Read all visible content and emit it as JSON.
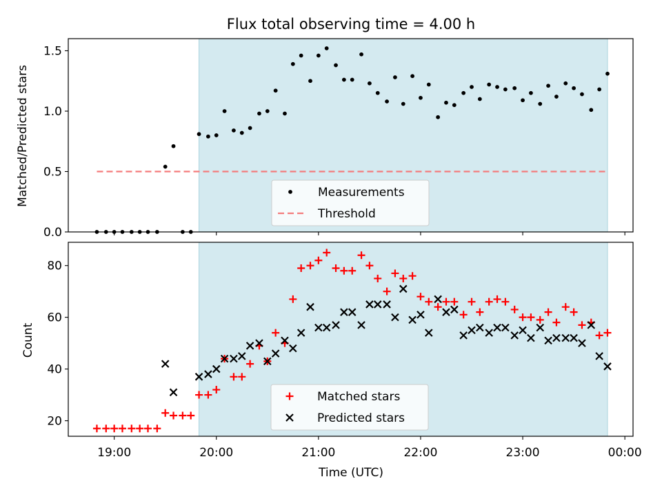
{
  "chart_data": [
    {
      "type": "scatter",
      "title": "Flux total observing time = 4.00 h",
      "xlabel": "",
      "ylabel": "Matched/Predicted stars",
      "ylim": [
        0,
        1.6
      ],
      "yticks": [
        0.0,
        0.5,
        1.0,
        1.5
      ],
      "ytick_labels": [
        "0.0",
        "0.5",
        "1.0",
        "1.5"
      ],
      "xlim": [
        18.55,
        24.08
      ],
      "xticks": [
        19,
        20,
        21,
        22,
        23,
        24
      ],
      "xtick_labels": [
        "",
        "",
        "",
        "",
        "",
        ""
      ],
      "shaded_span": [
        19.83,
        23.83
      ],
      "shade_color": "#d4eaf0",
      "legend_placement": "lower center",
      "series": [
        {
          "name": "Measurements",
          "marker": "dot",
          "color": "#000000",
          "x": [
            18.83,
            18.92,
            19.0,
            19.08,
            19.17,
            19.25,
            19.33,
            19.42,
            19.5,
            19.58,
            19.67,
            19.75,
            19.83,
            19.92,
            20.0,
            20.08,
            20.17,
            20.25,
            20.33,
            20.42,
            20.5,
            20.58,
            20.67,
            20.75,
            20.83,
            20.92,
            21.0,
            21.08,
            21.17,
            21.25,
            21.33,
            21.42,
            21.5,
            21.58,
            21.67,
            21.75,
            21.83,
            21.92,
            22.0,
            22.08,
            22.17,
            22.25,
            22.33,
            22.42,
            22.5,
            22.58,
            22.67,
            22.75,
            22.83,
            22.92,
            23.0,
            23.08,
            23.17,
            23.25,
            23.33,
            23.42,
            23.5,
            23.58,
            23.67,
            23.75,
            23.83
          ],
          "values": [
            0.0,
            0.0,
            0.0,
            0.0,
            0.0,
            0.0,
            0.0,
            0.0,
            0.54,
            0.71,
            0.0,
            0.0,
            0.81,
            0.79,
            0.8,
            1.0,
            0.84,
            0.82,
            0.86,
            0.98,
            1.0,
            1.17,
            0.98,
            1.39,
            1.46,
            1.25,
            1.46,
            1.52,
            1.38,
            1.26,
            1.26,
            1.47,
            1.23,
            1.15,
            1.08,
            1.28,
            1.06,
            1.29,
            1.11,
            1.22,
            0.95,
            1.07,
            1.05,
            1.15,
            1.2,
            1.1,
            1.22,
            1.2,
            1.18,
            1.19,
            1.09,
            1.15,
            1.06,
            1.21,
            1.12,
            1.23,
            1.19,
            1.14,
            1.01,
            1.18,
            1.31
          ]
        },
        {
          "name": "Threshold",
          "marker": "dashed-line",
          "color": "#f47b7b",
          "x": [
            18.83,
            23.83
          ],
          "values": [
            0.5,
            0.5
          ]
        }
      ]
    },
    {
      "type": "scatter",
      "title": "",
      "xlabel": "Time (UTC)",
      "ylabel": "Count",
      "ylim": [
        14,
        89
      ],
      "yticks": [
        20,
        40,
        60,
        80
      ],
      "ytick_labels": [
        "20",
        "40",
        "60",
        "80"
      ],
      "xlim": [
        18.55,
        24.08
      ],
      "xticks": [
        19,
        20,
        21,
        22,
        23,
        24
      ],
      "xtick_labels": [
        "19:00",
        "20:00",
        "21:00",
        "22:00",
        "23:00",
        "00:00"
      ],
      "shaded_span": [
        19.83,
        23.83
      ],
      "shade_color": "#d4eaf0",
      "legend_placement": "lower center",
      "series": [
        {
          "name": "Matched stars",
          "marker": "plus",
          "color": "#ff0000",
          "x": [
            18.83,
            18.92,
            19.0,
            19.08,
            19.17,
            19.25,
            19.33,
            19.42,
            19.5,
            19.58,
            19.67,
            19.75,
            19.83,
            19.92,
            20.0,
            20.08,
            20.17,
            20.25,
            20.33,
            20.42,
            20.5,
            20.58,
            20.67,
            20.75,
            20.83,
            20.92,
            21.0,
            21.08,
            21.17,
            21.25,
            21.33,
            21.42,
            21.5,
            21.58,
            21.67,
            21.75,
            21.83,
            21.92,
            22.0,
            22.08,
            22.17,
            22.25,
            22.33,
            22.42,
            22.5,
            22.58,
            22.67,
            22.75,
            22.83,
            22.92,
            23.0,
            23.08,
            23.17,
            23.25,
            23.33,
            23.42,
            23.5,
            23.58,
            23.67,
            23.75,
            23.83
          ],
          "values": [
            17,
            17,
            17,
            17,
            17,
            17,
            17,
            17,
            23,
            22,
            22,
            22,
            30,
            30,
            32,
            44,
            37,
            37,
            42,
            49,
            43,
            54,
            50,
            67,
            79,
            80,
            82,
            85,
            79,
            78,
            78,
            84,
            80,
            75,
            70,
            77,
            75,
            76,
            68,
            66,
            64,
            66,
            66,
            61,
            66,
            62,
            66,
            67,
            66,
            63,
            60,
            60,
            59,
            62,
            58,
            64,
            62,
            57,
            58,
            53,
            54
          ]
        },
        {
          "name": "Predicted stars",
          "marker": "x",
          "color": "#000000",
          "x": [
            19.5,
            19.58,
            19.83,
            19.92,
            20.0,
            20.08,
            20.17,
            20.25,
            20.33,
            20.42,
            20.5,
            20.58,
            20.67,
            20.75,
            20.83,
            20.92,
            21.0,
            21.08,
            21.17,
            21.25,
            21.33,
            21.42,
            21.5,
            21.58,
            21.67,
            21.75,
            21.83,
            21.92,
            22.0,
            22.08,
            22.17,
            22.25,
            22.33,
            22.42,
            22.5,
            22.58,
            22.67,
            22.75,
            22.83,
            22.92,
            23.0,
            23.08,
            23.17,
            23.25,
            23.33,
            23.42,
            23.5,
            23.58,
            23.67,
            23.75,
            23.83
          ],
          "values": [
            42,
            31,
            37,
            38,
            40,
            44,
            44,
            45,
            49,
            50,
            43,
            46,
            51,
            48,
            54,
            64,
            56,
            56,
            57,
            62,
            62,
            57,
            65,
            65,
            65,
            60,
            71,
            59,
            61,
            54,
            67,
            62,
            63,
            53,
            55,
            56,
            54,
            56,
            56,
            53,
            55,
            52,
            56,
            51,
            52,
            52,
            52,
            50,
            57,
            45,
            41
          ]
        }
      ]
    }
  ]
}
